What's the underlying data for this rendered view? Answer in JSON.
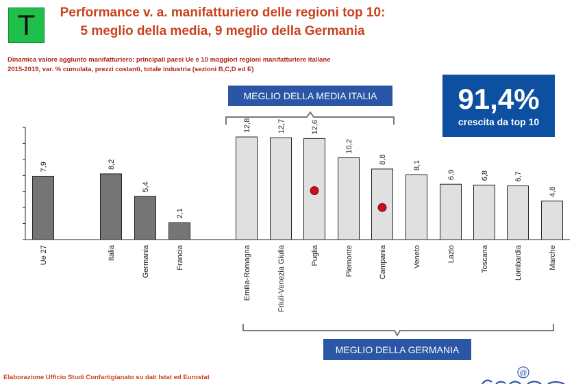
{
  "badge": {
    "letter": "T"
  },
  "header": {
    "title_line1": "Performance v. a. manifatturiero delle regioni top 10:",
    "title_line2": "5 meglio della media, 9 meglio della Germania",
    "subtitle_line1": "Dinamica valore aggiunto manifatturiero: principali paesi  Ue e 10 maggiori regioni manifatturiere italiane",
    "subtitle_line2": "2015-2019, var. % cumulata, prezzi costanti, totale industria (sezioni B,C,D ed E)"
  },
  "kpi": {
    "value": "91,4%",
    "label": "crescita da top 10"
  },
  "annotations": {
    "top_label": "MEGLIO DELLA MEDIA ITALIA",
    "bottom_label": "MEGLIO DELLA GERMANIA"
  },
  "footer": {
    "source": "Elaborazione Ufficio Studi Confartigianato su dati Istat ed Eurostat"
  },
  "colors": {
    "title": "#c8421e",
    "kpi_background": "#0d4fa0",
    "label_box": "#2b56a6",
    "bar_countries": "#757575",
    "bar_regions": "#e0e0e0",
    "marker": "#c8101a",
    "badge": "#1fc04a"
  },
  "chart_data": {
    "type": "bar",
    "categories": [
      "Ue 27",
      "Italia",
      "Germania",
      "Francia",
      "Emilia-Romagna",
      "Friuli-Venezia Giulia",
      "Puglia",
      "Piemonte",
      "Campania",
      "Veneto",
      "Lazio",
      "Toscana",
      "Lombardia",
      "Marche"
    ],
    "values": [
      7.9,
      8.2,
      5.4,
      2.1,
      12.8,
      12.7,
      12.6,
      10.2,
      8.8,
      8.1,
      6.9,
      6.8,
      6.7,
      4.8
    ],
    "value_labels": [
      "7,9",
      "8,2",
      "5,4",
      "2,1",
      "12,8",
      "12,7",
      "12,6",
      "10,2",
      "8,8",
      "8,1",
      "6,9",
      "6,8",
      "6,7",
      "4,8"
    ],
    "groups": [
      "country",
      "country",
      "country",
      "country",
      "region",
      "region",
      "region",
      "region",
      "region",
      "region",
      "region",
      "region",
      "region",
      "region"
    ],
    "markers": [
      {
        "category": "Puglia",
        "value": 6.1
      },
      {
        "category": "Campania",
        "value": 4.0
      }
    ],
    "ylim": [
      0,
      14
    ],
    "yticks": [
      0,
      2,
      4,
      6,
      8,
      10,
      12,
      14
    ],
    "grid": false,
    "legend": "none"
  }
}
